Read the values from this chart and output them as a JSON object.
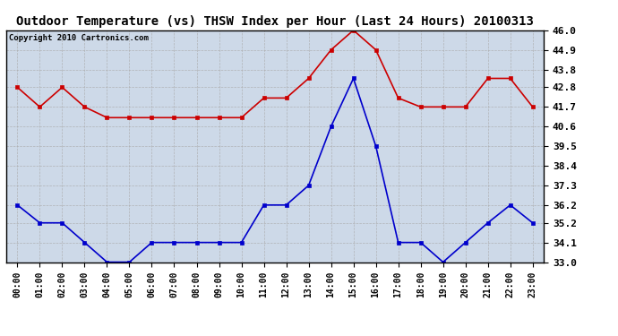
{
  "title": "Outdoor Temperature (vs) THSW Index per Hour (Last 24 Hours) 20100313",
  "copyright": "Copyright 2010 Cartronics.com",
  "hours": [
    "00:00",
    "01:00",
    "02:00",
    "03:00",
    "04:00",
    "05:00",
    "06:00",
    "07:00",
    "08:00",
    "09:00",
    "10:00",
    "11:00",
    "12:00",
    "13:00",
    "14:00",
    "15:00",
    "16:00",
    "17:00",
    "18:00",
    "19:00",
    "20:00",
    "21:00",
    "22:00",
    "23:00"
  ],
  "red_data": [
    42.8,
    41.7,
    42.8,
    41.7,
    41.1,
    41.1,
    41.1,
    41.1,
    41.1,
    41.1,
    41.1,
    42.2,
    42.2,
    43.3,
    44.9,
    46.0,
    44.9,
    42.2,
    41.7,
    41.7,
    41.7,
    43.3,
    43.3,
    41.7
  ],
  "blue_data": [
    36.2,
    35.2,
    35.2,
    34.1,
    33.0,
    33.0,
    34.1,
    34.1,
    34.1,
    34.1,
    34.1,
    36.2,
    36.2,
    37.3,
    40.6,
    43.3,
    39.5,
    34.1,
    34.1,
    33.0,
    34.1,
    35.2,
    36.2,
    35.2
  ],
  "red_color": "#cc0000",
  "blue_color": "#0000cc",
  "bg_color": "#ffffff",
  "plot_bg_color": "#cdd9e8",
  "grid_color": "#aaaaaa",
  "ylim_min": 33.0,
  "ylim_max": 46.0,
  "yticks": [
    33.0,
    34.1,
    35.2,
    36.2,
    37.3,
    38.4,
    39.5,
    40.6,
    41.7,
    42.8,
    43.8,
    44.9,
    46.0
  ],
  "title_fontsize": 10,
  "copyright_fontsize": 6.5,
  "xtick_fontsize": 7,
  "ytick_fontsize": 8,
  "marker": "s",
  "marker_size": 2.5,
  "linewidth": 1.2
}
